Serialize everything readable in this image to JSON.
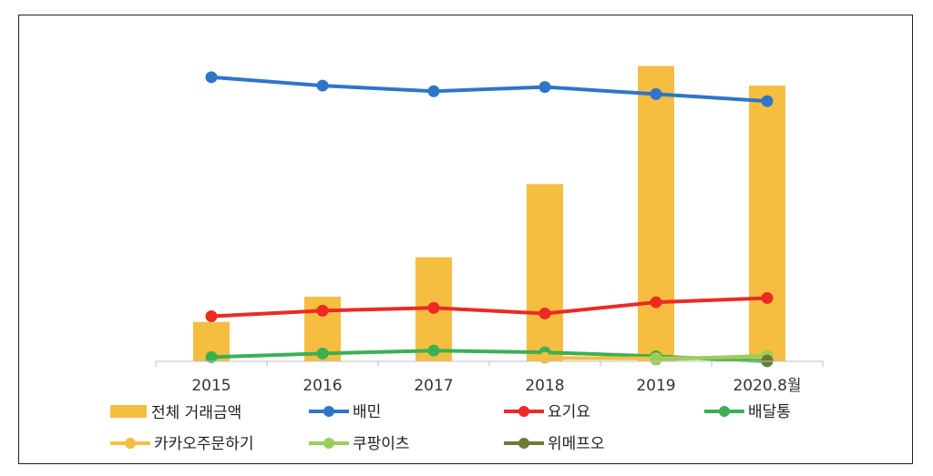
{
  "chart_data": {
    "type": "bar",
    "categories": [
      "2015",
      "2016",
      "2017",
      "2018",
      "2019",
      "2020.8월"
    ],
    "bar_series": {
      "name": "전체 거래금액",
      "color": "#F5BE41",
      "values": [
        0.14,
        0.23,
        0.37,
        0.63,
        1.05,
        0.98
      ]
    },
    "line_series": [
      {
        "name": "배민",
        "color": "#2F75C8",
        "values": [
          1.01,
          0.98,
          0.96,
          0.975,
          0.95,
          0.925
        ]
      },
      {
        "name": "요기요",
        "color": "#EC2A24",
        "values": [
          0.16,
          0.18,
          0.19,
          0.17,
          0.21,
          0.225
        ]
      },
      {
        "name": "배달통",
        "color": "#3BB053",
        "values": [
          0.015,
          0.028,
          0.038,
          0.032,
          0.018,
          0.0
        ]
      },
      {
        "name": "카카오주문하기",
        "color": "#F5BE41",
        "values": [
          null,
          null,
          null,
          0.012,
          0.01,
          0.016
        ]
      },
      {
        "name": "쿠팡이츠",
        "color": "#98CF5A",
        "values": [
          null,
          null,
          null,
          null,
          0.006,
          0.02
        ]
      },
      {
        "name": "위메프오",
        "color": "#6E7A36",
        "values": [
          null,
          null,
          null,
          null,
          null,
          0.003
        ]
      }
    ],
    "ylim": [
      0,
      1.1
    ],
    "xlabel": "",
    "ylabel": "",
    "grid": false,
    "legend_position": "bottom"
  }
}
